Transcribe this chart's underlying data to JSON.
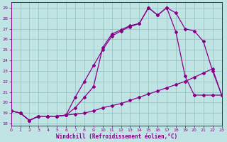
{
  "background_color": "#c0e4e4",
  "grid_color": "#90bebe",
  "line_color": "#880088",
  "xlim": [
    0,
    23
  ],
  "ylim": [
    17.8,
    29.5
  ],
  "xticks": [
    0,
    1,
    2,
    3,
    4,
    5,
    6,
    7,
    8,
    9,
    10,
    11,
    12,
    13,
    14,
    15,
    16,
    17,
    18,
    19,
    20,
    21,
    22,
    23
  ],
  "yticks": [
    18,
    19,
    20,
    21,
    22,
    23,
    24,
    25,
    26,
    27,
    28,
    29
  ],
  "xlabel": "Windchill (Refroidissement éolien,°C)",
  "line1_x": [
    0,
    1,
    2,
    3,
    4,
    5,
    6,
    7,
    8,
    9,
    10,
    11,
    12,
    13,
    14,
    15,
    16,
    17,
    18,
    19,
    20,
    21,
    22,
    23
  ],
  "line1_y": [
    19.2,
    19.0,
    18.3,
    18.7,
    18.7,
    18.7,
    18.8,
    18.9,
    19.0,
    19.2,
    19.5,
    19.7,
    19.9,
    20.2,
    20.5,
    20.8,
    21.1,
    21.4,
    21.7,
    22.0,
    22.4,
    22.8,
    23.2,
    20.7
  ],
  "line2_x": [
    0,
    1,
    2,
    3,
    4,
    5,
    6,
    7,
    8,
    9,
    10,
    11,
    12,
    13,
    14,
    15,
    16,
    17,
    18,
    19,
    20,
    21,
    22,
    23
  ],
  "line2_y": [
    19.2,
    19.0,
    18.3,
    18.7,
    18.7,
    18.7,
    18.8,
    20.5,
    22.0,
    23.5,
    25.0,
    26.3,
    26.8,
    27.2,
    27.5,
    29.0,
    28.3,
    29.0,
    28.5,
    27.0,
    26.8,
    25.8,
    23.0,
    20.7
  ],
  "line3_x": [
    0,
    1,
    2,
    3,
    4,
    5,
    6,
    7,
    8,
    9,
    10,
    11,
    12,
    13,
    14,
    15,
    16,
    17,
    18,
    19,
    20,
    21,
    22,
    23
  ],
  "line3_y": [
    19.2,
    19.0,
    18.3,
    18.7,
    18.7,
    18.7,
    18.8,
    19.5,
    20.5,
    21.5,
    25.2,
    26.5,
    26.9,
    27.3,
    27.5,
    29.0,
    28.3,
    29.0,
    26.7,
    22.5,
    20.7,
    20.7,
    20.7,
    20.7
  ]
}
